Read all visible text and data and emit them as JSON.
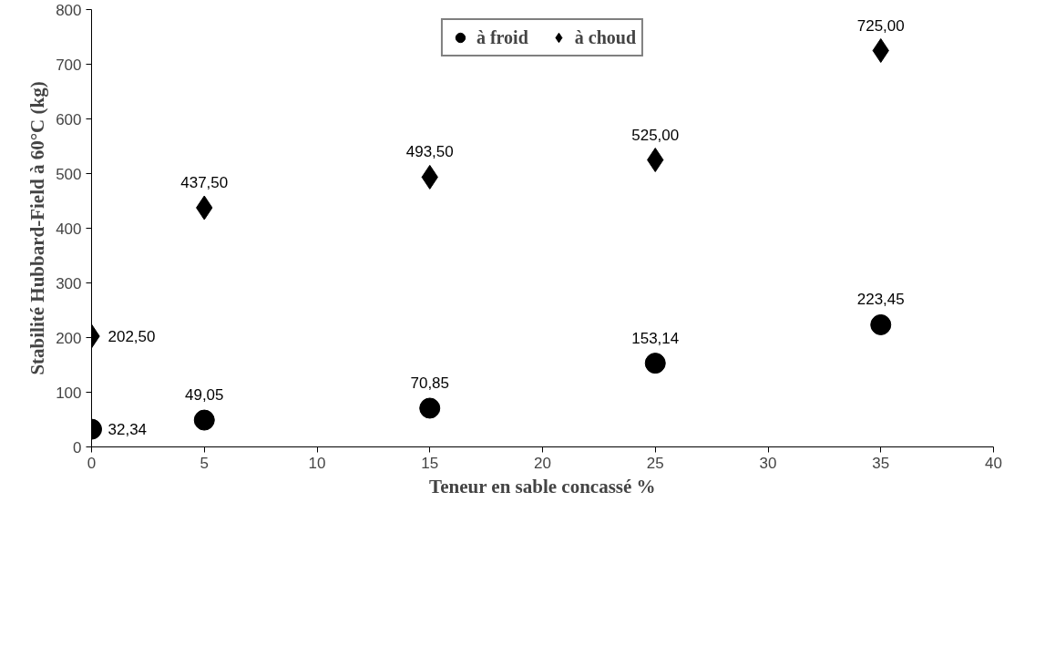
{
  "chart_data": {
    "type": "scatter",
    "xlabel": "Teneur en sable concassé %",
    "ylabel": "Stabilité Hubbard-Field à 60°C (kg)",
    "x": [
      0,
      5,
      15,
      25,
      35
    ],
    "series": [
      {
        "name": "à froid",
        "color": "#000000",
        "marker": "circle",
        "values": [
          32.34,
          49.05,
          70.85,
          153.14,
          223.45
        ],
        "value_labels": [
          "32,34",
          "49,05",
          "70,85",
          "153,14",
          "223,45"
        ]
      },
      {
        "name": "à choud",
        "color": "#000000",
        "marker": "diamond",
        "values": [
          202.5,
          437.5,
          493.5,
          525.0,
          725.0
        ],
        "value_labels": [
          "202,50",
          "437,50",
          "493,50",
          "525,00",
          "725,00"
        ]
      }
    ],
    "xlim": [
      0,
      40
    ],
    "xticks": [
      0,
      5,
      10,
      15,
      20,
      25,
      30,
      35,
      40
    ],
    "ylim": [
      0,
      800
    ],
    "yticks": [
      0,
      100,
      200,
      300,
      400,
      500,
      600,
      700,
      800
    ],
    "grid": false,
    "legend": "top"
  }
}
